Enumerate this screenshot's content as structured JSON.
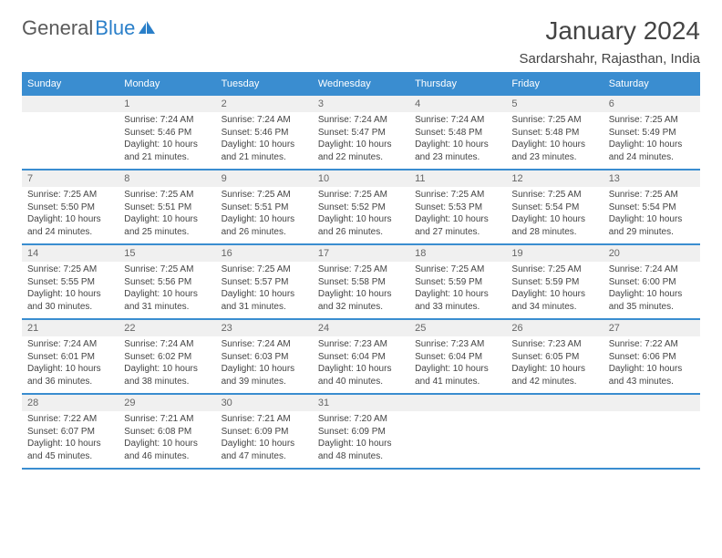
{
  "logo": {
    "part1": "General",
    "part2": "Blue"
  },
  "title": "January 2024",
  "location": "Sardarshahr, Rajasthan, India",
  "colors": {
    "header_bg": "#3a8dd0",
    "header_fg": "#ffffff",
    "daynum_bg": "#f0f0f0",
    "row_border": "#3a8dd0",
    "text": "#444444",
    "logo_gray": "#5a5a5a",
    "logo_blue": "#2a7fc9"
  },
  "day_headers": [
    "Sunday",
    "Monday",
    "Tuesday",
    "Wednesday",
    "Thursday",
    "Friday",
    "Saturday"
  ],
  "start_offset": 1,
  "days": [
    {
      "n": 1,
      "sr": "7:24 AM",
      "ss": "5:46 PM",
      "dh": 10,
      "dm": 21
    },
    {
      "n": 2,
      "sr": "7:24 AM",
      "ss": "5:46 PM",
      "dh": 10,
      "dm": 21
    },
    {
      "n": 3,
      "sr": "7:24 AM",
      "ss": "5:47 PM",
      "dh": 10,
      "dm": 22
    },
    {
      "n": 4,
      "sr": "7:24 AM",
      "ss": "5:48 PM",
      "dh": 10,
      "dm": 23
    },
    {
      "n": 5,
      "sr": "7:25 AM",
      "ss": "5:48 PM",
      "dh": 10,
      "dm": 23
    },
    {
      "n": 6,
      "sr": "7:25 AM",
      "ss": "5:49 PM",
      "dh": 10,
      "dm": 24
    },
    {
      "n": 7,
      "sr": "7:25 AM",
      "ss": "5:50 PM",
      "dh": 10,
      "dm": 24
    },
    {
      "n": 8,
      "sr": "7:25 AM",
      "ss": "5:51 PM",
      "dh": 10,
      "dm": 25
    },
    {
      "n": 9,
      "sr": "7:25 AM",
      "ss": "5:51 PM",
      "dh": 10,
      "dm": 26
    },
    {
      "n": 10,
      "sr": "7:25 AM",
      "ss": "5:52 PM",
      "dh": 10,
      "dm": 26
    },
    {
      "n": 11,
      "sr": "7:25 AM",
      "ss": "5:53 PM",
      "dh": 10,
      "dm": 27
    },
    {
      "n": 12,
      "sr": "7:25 AM",
      "ss": "5:54 PM",
      "dh": 10,
      "dm": 28
    },
    {
      "n": 13,
      "sr": "7:25 AM",
      "ss": "5:54 PM",
      "dh": 10,
      "dm": 29
    },
    {
      "n": 14,
      "sr": "7:25 AM",
      "ss": "5:55 PM",
      "dh": 10,
      "dm": 30
    },
    {
      "n": 15,
      "sr": "7:25 AM",
      "ss": "5:56 PM",
      "dh": 10,
      "dm": 31
    },
    {
      "n": 16,
      "sr": "7:25 AM",
      "ss": "5:57 PM",
      "dh": 10,
      "dm": 31
    },
    {
      "n": 17,
      "sr": "7:25 AM",
      "ss": "5:58 PM",
      "dh": 10,
      "dm": 32
    },
    {
      "n": 18,
      "sr": "7:25 AM",
      "ss": "5:59 PM",
      "dh": 10,
      "dm": 33
    },
    {
      "n": 19,
      "sr": "7:25 AM",
      "ss": "5:59 PM",
      "dh": 10,
      "dm": 34
    },
    {
      "n": 20,
      "sr": "7:24 AM",
      "ss": "6:00 PM",
      "dh": 10,
      "dm": 35
    },
    {
      "n": 21,
      "sr": "7:24 AM",
      "ss": "6:01 PM",
      "dh": 10,
      "dm": 36
    },
    {
      "n": 22,
      "sr": "7:24 AM",
      "ss": "6:02 PM",
      "dh": 10,
      "dm": 38
    },
    {
      "n": 23,
      "sr": "7:24 AM",
      "ss": "6:03 PM",
      "dh": 10,
      "dm": 39
    },
    {
      "n": 24,
      "sr": "7:23 AM",
      "ss": "6:04 PM",
      "dh": 10,
      "dm": 40
    },
    {
      "n": 25,
      "sr": "7:23 AM",
      "ss": "6:04 PM",
      "dh": 10,
      "dm": 41
    },
    {
      "n": 26,
      "sr": "7:23 AM",
      "ss": "6:05 PM",
      "dh": 10,
      "dm": 42
    },
    {
      "n": 27,
      "sr": "7:22 AM",
      "ss": "6:06 PM",
      "dh": 10,
      "dm": 43
    },
    {
      "n": 28,
      "sr": "7:22 AM",
      "ss": "6:07 PM",
      "dh": 10,
      "dm": 45
    },
    {
      "n": 29,
      "sr": "7:21 AM",
      "ss": "6:08 PM",
      "dh": 10,
      "dm": 46
    },
    {
      "n": 30,
      "sr": "7:21 AM",
      "ss": "6:09 PM",
      "dh": 10,
      "dm": 47
    },
    {
      "n": 31,
      "sr": "7:20 AM",
      "ss": "6:09 PM",
      "dh": 10,
      "dm": 48
    }
  ],
  "labels": {
    "sunrise": "Sunrise:",
    "sunset": "Sunset:",
    "daylight": "Daylight:",
    "hours": "hours",
    "and": "and",
    "minutes": "minutes."
  }
}
